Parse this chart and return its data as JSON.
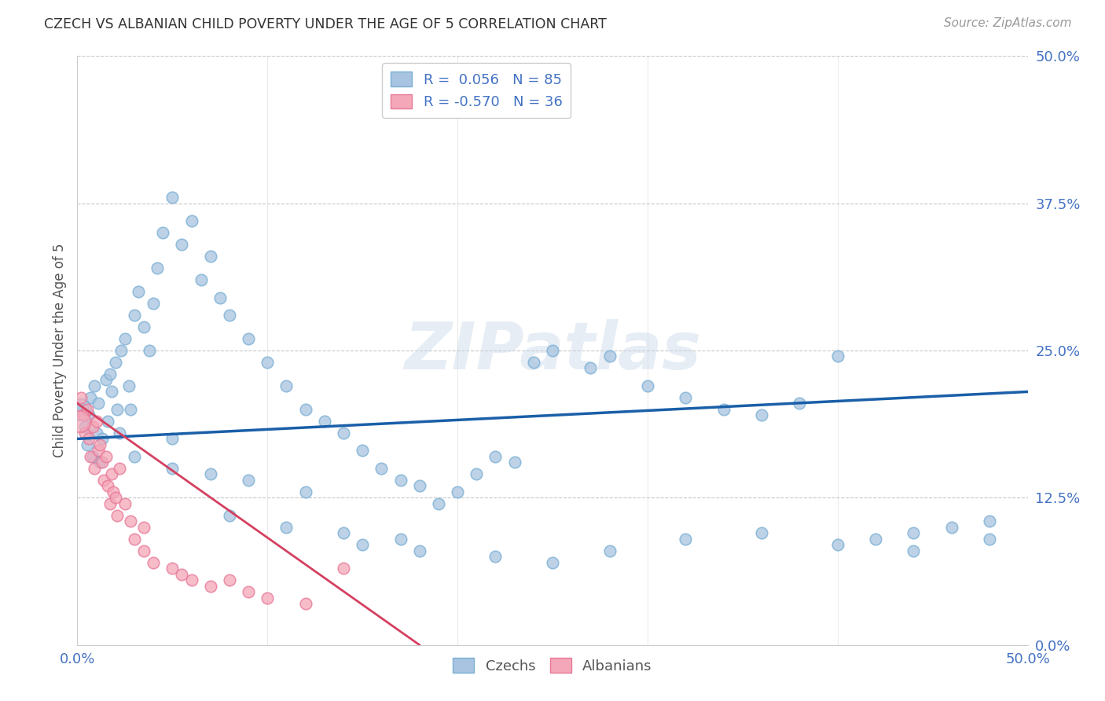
{
  "title": "CZECH VS ALBANIAN CHILD POVERTY UNDER THE AGE OF 5 CORRELATION CHART",
  "source": "Source: ZipAtlas.com",
  "ylabel": "Child Poverty Under the Age of 5",
  "ytick_values": [
    0,
    12.5,
    25,
    37.5,
    50
  ],
  "xlim": [
    0,
    50
  ],
  "ylim": [
    0,
    50
  ],
  "czech_R": 0.056,
  "czech_N": 85,
  "albanian_R": -0.57,
  "albanian_N": 36,
  "czech_color": "#a8c4e0",
  "czech_edge_color": "#7aafd4",
  "albanian_color": "#f4a7b8",
  "albanian_edge_color": "#e87898",
  "czech_line_color": "#1a5fa8",
  "albanian_line_color": "#d44060",
  "watermark": "ZIPatlas",
  "background_color": "#ffffff",
  "grid_color": "#c8c8c8",
  "legend_label_czech": "Czechs",
  "legend_label_albanian": "Albanians",
  "title_color": "#333333",
  "axis_label_color": "#4472c4",
  "czech_line_x": [
    0,
    50
  ],
  "czech_line_y": [
    17.5,
    21.5
  ],
  "alb_line_x": [
    0,
    18.0
  ],
  "alb_line_y": [
    20.5,
    0.0
  ],
  "czech_x": [
    0.3,
    0.4,
    0.5,
    0.6,
    0.7,
    0.8,
    0.9,
    1.0,
    1.1,
    1.2,
    1.3,
    1.5,
    1.6,
    1.7,
    1.8,
    2.0,
    2.1,
    2.2,
    2.3,
    2.5,
    2.7,
    2.8,
    3.0,
    3.2,
    3.5,
    3.8,
    4.0,
    4.2,
    4.5,
    5.0,
    5.5,
    6.0,
    6.5,
    7.0,
    7.5,
    8.0,
    9.0,
    10.0,
    11.0,
    12.0,
    13.0,
    14.0,
    15.0,
    16.0,
    17.0,
    18.0,
    19.0,
    20.0,
    21.0,
    22.0,
    23.0,
    24.0,
    25.0,
    27.0,
    28.0,
    30.0,
    32.0,
    34.0,
    36.0,
    38.0,
    40.0,
    42.0,
    44.0,
    46.0,
    48.0,
    5.0,
    7.0,
    9.0,
    12.0,
    15.0,
    18.0,
    22.0,
    25.0,
    28.0,
    32.0,
    36.0,
    40.0,
    44.0,
    48.0,
    3.0,
    5.0,
    8.0,
    11.0,
    14.0,
    17.0
  ],
  "czech_y": [
    20.0,
    18.5,
    17.0,
    19.5,
    21.0,
    16.0,
    22.0,
    18.0,
    20.5,
    15.5,
    17.5,
    22.5,
    19.0,
    23.0,
    21.5,
    24.0,
    20.0,
    18.0,
    25.0,
    26.0,
    22.0,
    20.0,
    28.0,
    30.0,
    27.0,
    25.0,
    29.0,
    32.0,
    35.0,
    38.0,
    34.0,
    36.0,
    31.0,
    33.0,
    29.5,
    28.0,
    26.0,
    24.0,
    22.0,
    20.0,
    19.0,
    18.0,
    16.5,
    15.0,
    14.0,
    13.5,
    12.0,
    13.0,
    14.5,
    16.0,
    15.5,
    24.0,
    25.0,
    23.5,
    24.5,
    22.0,
    21.0,
    20.0,
    19.5,
    20.5,
    24.5,
    9.0,
    9.5,
    10.0,
    10.5,
    15.0,
    14.5,
    14.0,
    13.0,
    8.5,
    8.0,
    7.5,
    7.0,
    8.0,
    9.0,
    9.5,
    8.5,
    8.0,
    9.0,
    16.0,
    17.5,
    11.0,
    10.0,
    9.5,
    9.0
  ],
  "alb_x": [
    0.2,
    0.3,
    0.4,
    0.5,
    0.6,
    0.7,
    0.8,
    0.9,
    1.0,
    1.1,
    1.2,
    1.3,
    1.4,
    1.5,
    1.6,
    1.7,
    1.8,
    1.9,
    2.0,
    2.1,
    2.2,
    2.5,
    2.8,
    3.0,
    3.5,
    4.0,
    5.0,
    6.0,
    7.0,
    8.0,
    9.0,
    10.0,
    12.0,
    14.0,
    3.5,
    5.5
  ],
  "alb_y": [
    21.0,
    19.5,
    18.0,
    20.0,
    17.5,
    16.0,
    18.5,
    15.0,
    19.0,
    16.5,
    17.0,
    15.5,
    14.0,
    16.0,
    13.5,
    12.0,
    14.5,
    13.0,
    12.5,
    11.0,
    15.0,
    12.0,
    10.5,
    9.0,
    8.0,
    7.0,
    6.5,
    5.5,
    5.0,
    5.5,
    4.5,
    4.0,
    3.5,
    6.5,
    10.0,
    6.0
  ]
}
